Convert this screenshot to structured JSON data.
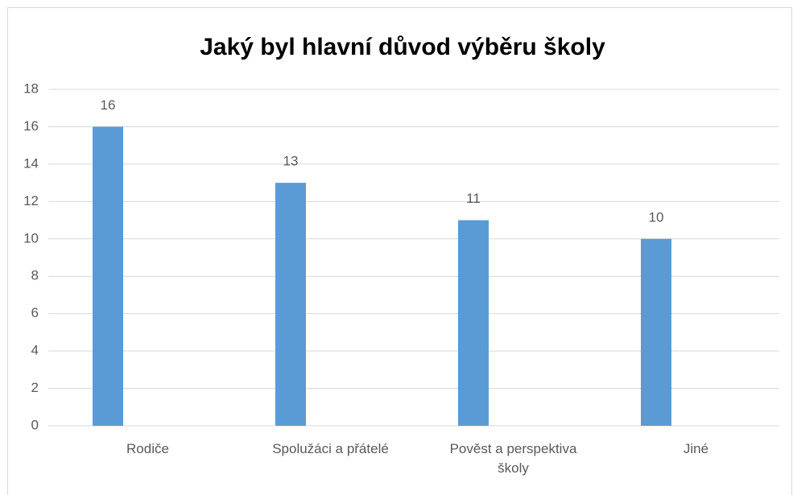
{
  "chart_data": {
    "type": "bar",
    "title": "Jaký byl hlavní důvod výběru školy",
    "categories": [
      "Rodiče",
      "Spolužáci a přátelé",
      "Pověst a perspektiva školy",
      "Jiné"
    ],
    "values": [
      16,
      13,
      11,
      10
    ],
    "color": "#5b9bd5",
    "ylim": [
      0,
      18
    ],
    "yticks": [
      0,
      2,
      4,
      6,
      8,
      10,
      12,
      14,
      16,
      18
    ],
    "grid": true
  }
}
